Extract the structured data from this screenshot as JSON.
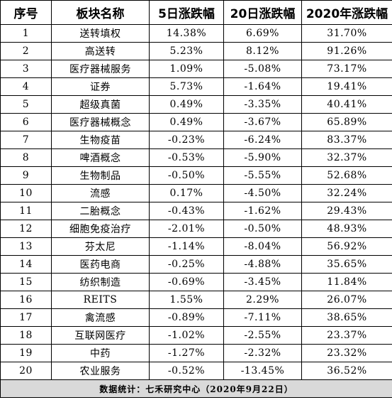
{
  "table": {
    "headers": [
      "序号",
      "板块名称",
      "5日涨跌幅",
      "20日涨跌幅",
      "2020年涨跌幅"
    ],
    "rows": [
      [
        "1",
        "送转填权",
        "14.38%",
        "6.69%",
        "31.70%"
      ],
      [
        "2",
        "高送转",
        "5.23%",
        "8.12%",
        "91.26%"
      ],
      [
        "3",
        "医疗器械服务",
        "1.09%",
        "-5.08%",
        "73.17%"
      ],
      [
        "4",
        "证券",
        "5.73%",
        "-1.64%",
        "19.41%"
      ],
      [
        "5",
        "超级真菌",
        "0.49%",
        "-3.35%",
        "40.41%"
      ],
      [
        "6",
        "医疗器械概念",
        "0.49%",
        "-3.67%",
        "65.89%"
      ],
      [
        "7",
        "生物疫苗",
        "-0.23%",
        "-6.24%",
        "83.37%"
      ],
      [
        "8",
        "啤酒概念",
        "-0.53%",
        "-5.90%",
        "32.37%"
      ],
      [
        "9",
        "生物制品",
        "-0.50%",
        "-5.55%",
        "52.68%"
      ],
      [
        "10",
        "流感",
        "0.17%",
        "-4.50%",
        "32.24%"
      ],
      [
        "11",
        "二胎概念",
        "-0.43%",
        "-1.62%",
        "29.43%"
      ],
      [
        "12",
        "细胞免疫治疗",
        "-2.01%",
        "-0.50%",
        "48.93%"
      ],
      [
        "13",
        "芬太尼",
        "-1.14%",
        "-8.04%",
        "56.92%"
      ],
      [
        "14",
        "医药电商",
        "-0.25%",
        "-4.88%",
        "35.65%"
      ],
      [
        "15",
        "纺织制造",
        "-0.69%",
        "-3.45%",
        "11.84%"
      ],
      [
        "16",
        "REITS",
        "1.55%",
        "2.29%",
        "26.07%"
      ],
      [
        "17",
        "禽流感",
        "-0.89%",
        "-7.11%",
        "38.65%"
      ],
      [
        "18",
        "互联网医疗",
        "-1.02%",
        "-2.55%",
        "23.37%"
      ],
      [
        "19",
        "中药",
        "-1.27%",
        "-2.32%",
        "23.32%"
      ],
      [
        "20",
        "农业服务",
        "-0.52%",
        "-13.45%",
        "36.52%"
      ]
    ],
    "footer": "数据统计：七禾研究中心（2020年9月22日）"
  }
}
